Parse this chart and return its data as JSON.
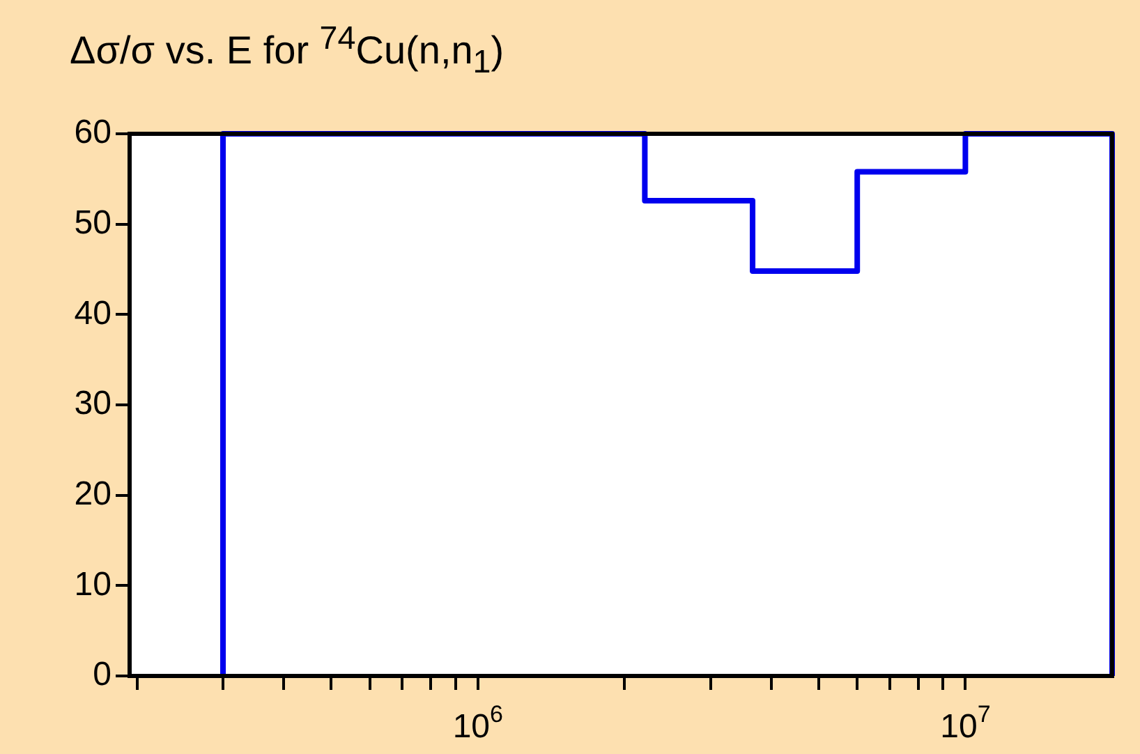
{
  "chart_data": {
    "type": "step",
    "title": "Δσ/σ vs. E for $^{74}$Cu(n,n$_{1}$)",
    "x": [
      300000,
      300000,
      2200000,
      3660000,
      6000000,
      10000000,
      20000000,
      20000000
    ],
    "series": [
      {
        "color": "#0000ee",
        "values": [
          0,
          60,
          52.6,
          44.8,
          55.8,
          60,
          60,
          0
        ]
      }
    ],
    "log": "x",
    "grid": false,
    "legend": false,
    "marker": "none",
    "line_style": "solid",
    "xlim": [
      193000,
      20000000
    ],
    "ylim": [
      0,
      60
    ],
    "xticks": [
      {
        "value": 200000,
        "label": null
      },
      {
        "value": 300000,
        "label": null
      },
      {
        "value": 400000,
        "label": null
      },
      {
        "value": 500000,
        "label": null
      },
      {
        "value": 600000,
        "label": null
      },
      {
        "value": 700000,
        "label": null
      },
      {
        "value": 800000,
        "label": null
      },
      {
        "value": 900000,
        "label": null
      },
      {
        "value": 1000000,
        "label": "10$^{6}$"
      },
      {
        "value": 2000000,
        "label": null
      },
      {
        "value": 3000000,
        "label": null
      },
      {
        "value": 4000000,
        "label": null
      },
      {
        "value": 5000000,
        "label": null
      },
      {
        "value": 6000000,
        "label": null
      },
      {
        "value": 7000000,
        "label": null
      },
      {
        "value": 8000000,
        "label": null
      },
      {
        "value": 9000000,
        "label": null
      },
      {
        "value": 10000000,
        "label": "10$^{7}$"
      }
    ],
    "yticks": [
      0,
      10,
      20,
      30,
      40,
      50,
      60
    ]
  }
}
